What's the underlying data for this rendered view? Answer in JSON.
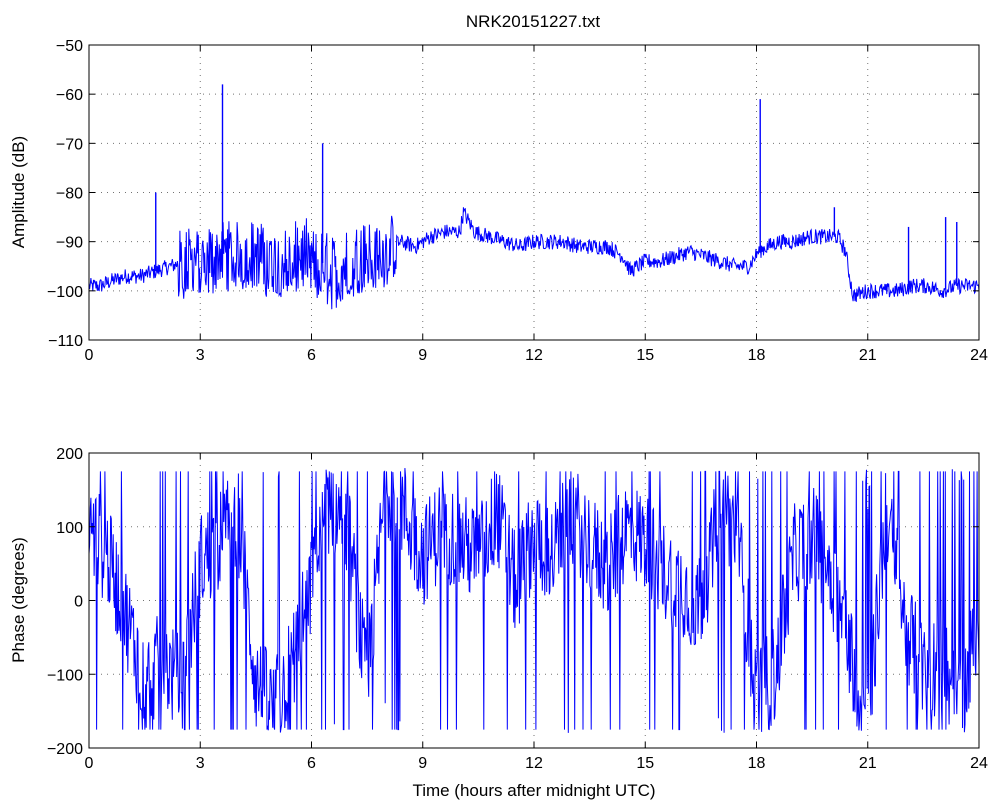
{
  "chart_data": [
    {
      "type": "line",
      "title": "NRK20151227.txt",
      "xlabel": "",
      "ylabel": "Amplitude (dB)",
      "xlim": [
        0,
        24
      ],
      "ylim": [
        -110,
        -50
      ],
      "x_ticks": [
        0,
        3,
        6,
        9,
        12,
        15,
        18,
        21,
        24
      ],
      "y_ticks": [
        -110,
        -100,
        -90,
        -80,
        -70,
        -60,
        -50
      ],
      "grid": true,
      "color": "#0000ff",
      "series": [
        {
          "x": [
            0.0,
            0.3,
            0.6,
            1.0,
            1.4,
            1.8,
            2.2,
            2.6,
            3.0,
            3.3,
            3.6,
            3.9,
            4.3,
            4.7,
            5.1,
            5.5,
            5.9,
            6.2,
            6.35,
            6.5,
            6.8,
            7.2,
            7.6,
            8.0,
            8.4,
            8.8,
            9.2,
            9.6,
            10.0,
            10.1,
            10.4,
            10.8,
            11.2,
            11.6,
            12.0,
            12.4,
            12.8,
            13.2,
            13.6,
            14.0,
            14.4,
            14.6,
            15.0,
            15.4,
            15.8,
            16.2,
            16.6,
            17.0,
            17.4,
            17.8,
            18.05,
            18.3,
            18.6,
            19.0,
            19.4,
            19.8,
            20.2,
            20.4,
            20.6,
            21.0,
            21.4,
            21.8,
            22.2,
            22.6,
            23.0,
            23.4,
            23.8,
            24.0
          ],
          "values": [
            -99,
            -99,
            -98,
            -97,
            -97,
            -96,
            -95,
            -94,
            -94,
            -93,
            -92,
            -93,
            -92,
            -93,
            -94,
            -93,
            -92,
            -95,
            -94,
            -96,
            -95,
            -93,
            -92,
            -92,
            -90,
            -91,
            -89,
            -88,
            -88,
            -84,
            -88,
            -89,
            -90,
            -91,
            -90,
            -90,
            -90,
            -91,
            -91,
            -91,
            -93,
            -96,
            -94,
            -94,
            -93,
            -92,
            -93,
            -94,
            -95,
            -95,
            -92,
            -91,
            -90,
            -90,
            -89,
            -89,
            -89,
            -92,
            -101,
            -100,
            -100,
            -100,
            -99,
            -99,
            -100,
            -99,
            -99,
            -99
          ],
          "spikes": [
            {
              "x": 1.8,
              "y": -80
            },
            {
              "x": 3.6,
              "y": -58
            },
            {
              "x": 6.3,
              "y": -70
            },
            {
              "x": 18.1,
              "y": -61
            },
            {
              "x": 20.1,
              "y": -83
            },
            {
              "x": 22.1,
              "y": -87
            },
            {
              "x": 23.1,
              "y": -85
            },
            {
              "x": 23.4,
              "y": -86
            }
          ]
        }
      ]
    },
    {
      "type": "line",
      "title": "",
      "xlabel": "Time (hours after midnight UTC)",
      "ylabel": "Phase (degrees)",
      "xlim": [
        0,
        24
      ],
      "ylim": [
        -200,
        200
      ],
      "x_ticks": [
        0,
        3,
        6,
        9,
        12,
        15,
        18,
        21,
        24
      ],
      "y_ticks": [
        -200,
        -100,
        0,
        100,
        200
      ],
      "grid": true,
      "color": "#0000ff",
      "series": [
        {
          "x": [
            0.0,
            0.5,
            1.0,
            1.5,
            2.0,
            2.5,
            3.0,
            3.5,
            4.0,
            4.5,
            5.0,
            5.5,
            6.0,
            6.5,
            7.0,
            7.5,
            8.0,
            8.5,
            9.0,
            9.5,
            10.0,
            10.5,
            11.0,
            11.5,
            12.0,
            12.5,
            13.0,
            13.5,
            14.0,
            14.5,
            15.0,
            15.5,
            16.0,
            16.4,
            16.8,
            17.0,
            17.5,
            18.0,
            18.5,
            19.0,
            19.5,
            20.0,
            20.5,
            21.0,
            21.5,
            22.0,
            22.5,
            23.0,
            23.5,
            24.0
          ],
          "values": [
            100,
            60,
            -20,
            -110,
            -80,
            -120,
            50,
            80,
            120,
            -110,
            -150,
            -80,
            20,
            140,
            90,
            -120,
            160,
            120,
            60,
            100,
            80,
            60,
            120,
            20,
            90,
            60,
            120,
            80,
            40,
            100,
            80,
            40,
            20,
            -10,
            60,
            150,
            80,
            -130,
            -100,
            60,
            90,
            40,
            -60,
            -170,
            120,
            -30,
            -100,
            -80,
            -150,
            -20
          ],
          "wrapped": true
        }
      ]
    }
  ]
}
